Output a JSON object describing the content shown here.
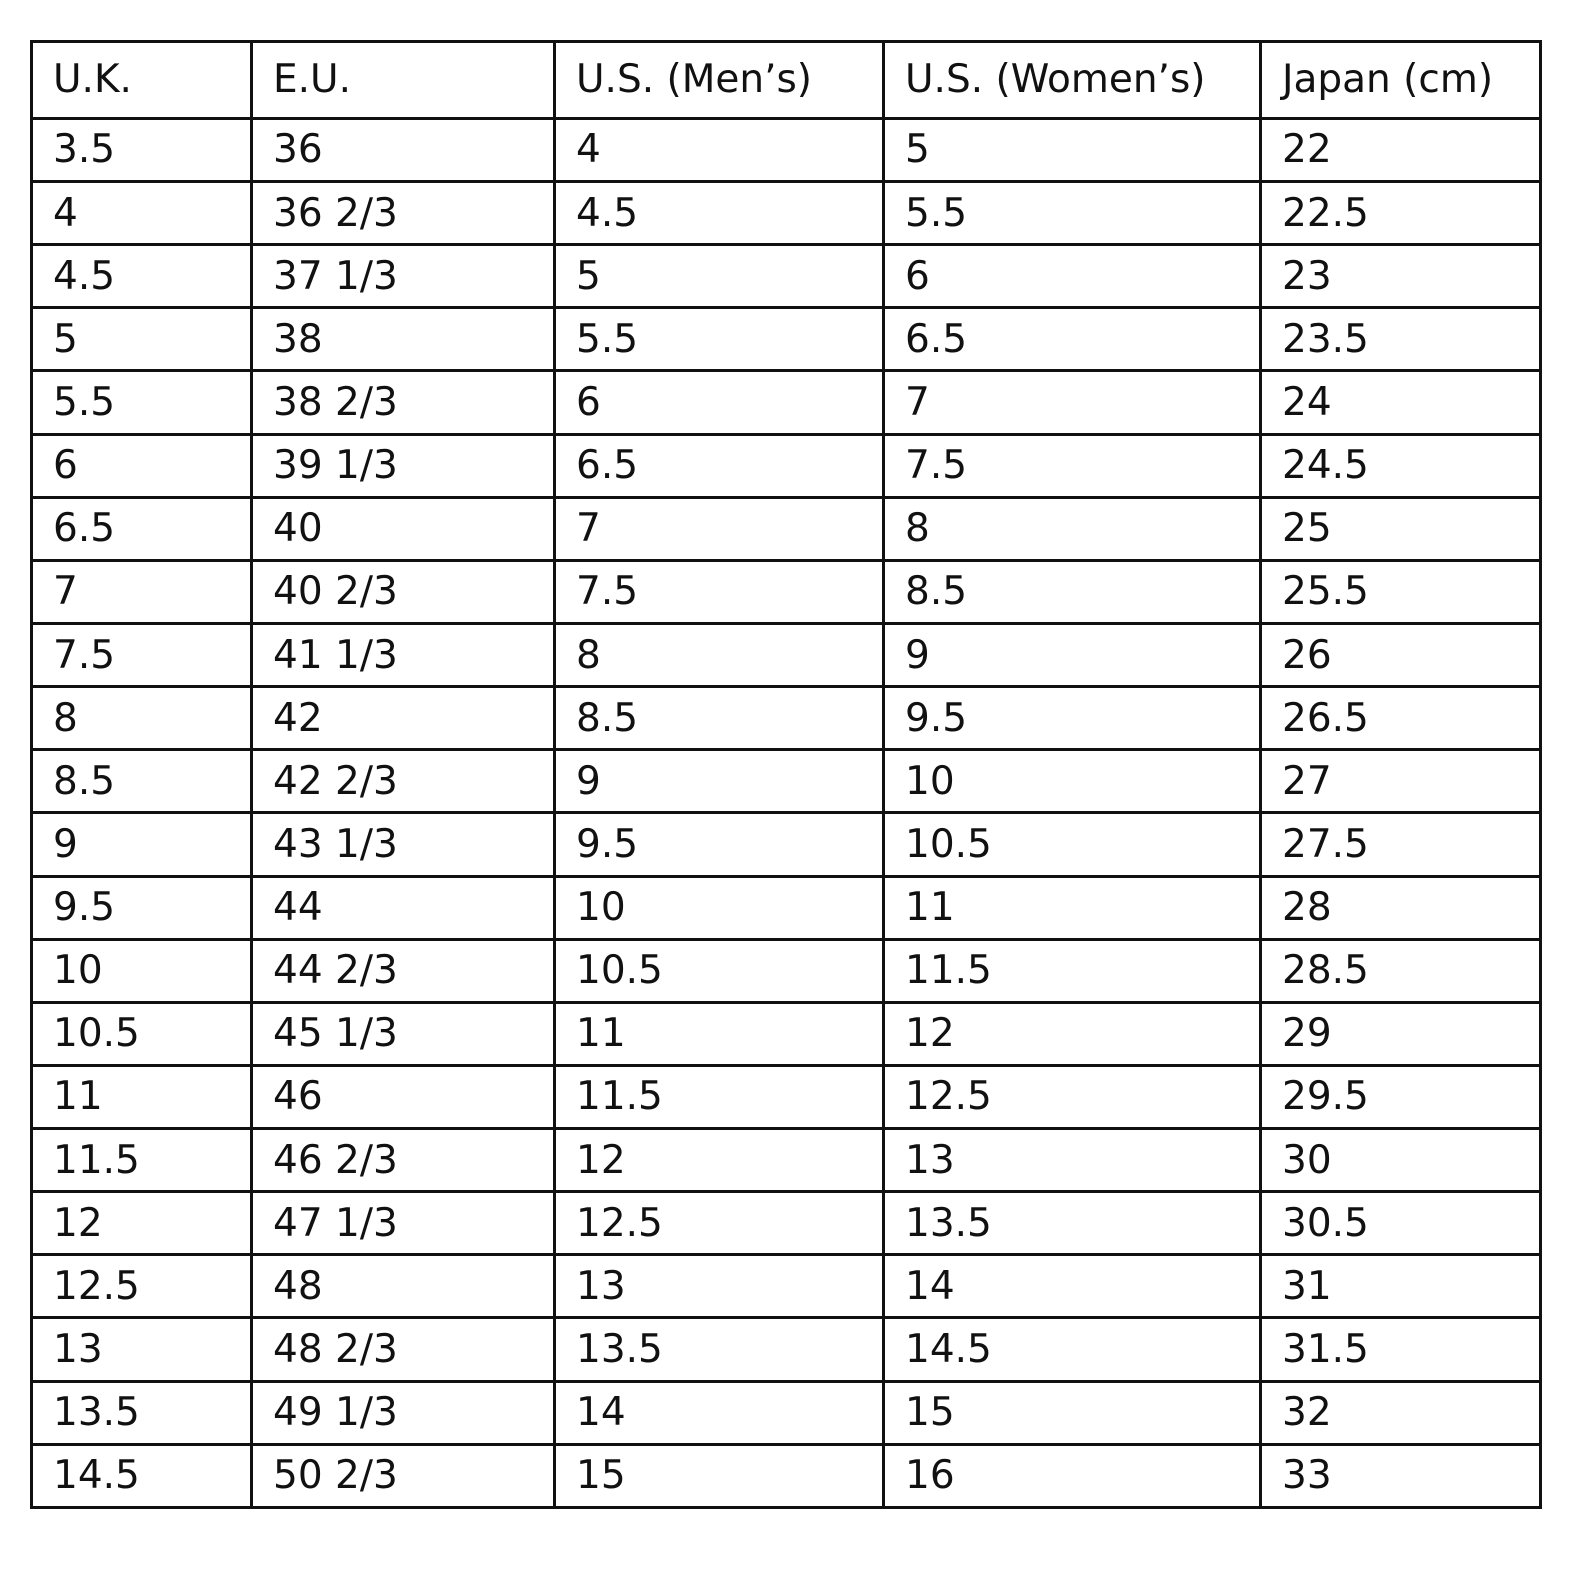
{
  "table": {
    "header": [
      "U.K.",
      "E.U.",
      "U.S. (Men’s)",
      "U.S. (Women’s)",
      "Japan (cm)"
    ],
    "rows": [
      [
        "3.5",
        "36",
        "4",
        "5",
        "22"
      ],
      [
        "4",
        "36 2/3",
        "4.5",
        "5.5",
        "22.5"
      ],
      [
        "4.5",
        "37 1/3",
        "5",
        "6",
        "23"
      ],
      [
        "5",
        "38",
        "5.5",
        "6.5",
        "23.5"
      ],
      [
        "5.5",
        "38 2/3",
        "6",
        "7",
        "24"
      ],
      [
        "6",
        "39 1/3",
        "6.5",
        "7.5",
        "24.5"
      ],
      [
        "6.5",
        "40",
        "7",
        "8",
        "25"
      ],
      [
        "7",
        "40 2/3",
        "7.5",
        "8.5",
        "25.5"
      ],
      [
        "7.5",
        "41 1/3",
        "8",
        "9",
        "26"
      ],
      [
        "8",
        "42",
        "8.5",
        "9.5",
        "26.5"
      ],
      [
        "8.5",
        "42 2/3",
        "9",
        "10",
        "27"
      ],
      [
        "9",
        "43 1/3",
        "9.5",
        "10.5",
        "27.5"
      ],
      [
        "9.5",
        "44",
        "10",
        "11",
        "28"
      ],
      [
        "10",
        "44 2/3",
        "10.5",
        "11.5",
        "28.5"
      ],
      [
        "10.5",
        "45 1/3",
        "11",
        "12",
        "29"
      ],
      [
        "11",
        "46",
        "11.5",
        "12.5",
        "29.5"
      ],
      [
        "11.5",
        "46 2/3",
        "12",
        "13",
        "30"
      ],
      [
        "12",
        "47 1/3",
        "12.5",
        "13.5",
        "30.5"
      ],
      [
        "12.5",
        "48",
        "13",
        "14",
        "31"
      ],
      [
        "13",
        "48 2/3",
        "13.5",
        "14.5",
        "31.5"
      ],
      [
        "13.5",
        "49 1/3",
        "14",
        "15",
        "32"
      ],
      [
        "14.5",
        "50 2/3",
        "15",
        "16",
        "33"
      ]
    ]
  }
}
